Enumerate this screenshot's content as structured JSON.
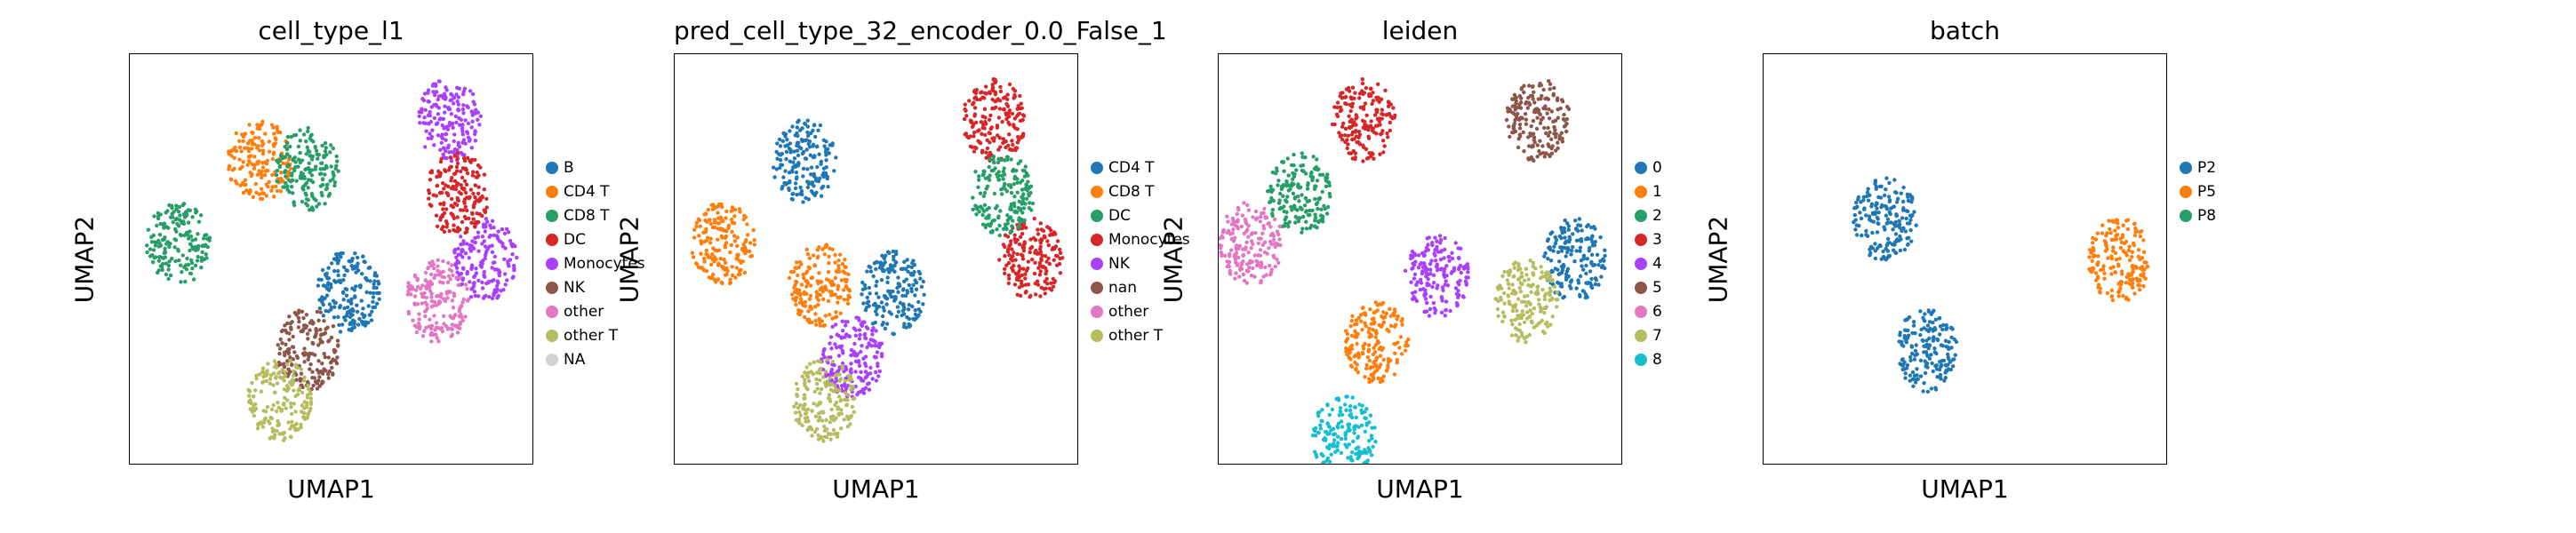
{
  "chart_data": [
    {
      "type": "scatter",
      "title": "cell_type_l1",
      "xlabel": "UMAP1",
      "ylabel": "UMAP2",
      "grid": false,
      "legend_position": "right",
      "legend": [
        {
          "label": "B",
          "color": "#1f77b4"
        },
        {
          "label": "CD4 T",
          "color": "#ff7f0e"
        },
        {
          "label": "CD8 T",
          "color": "#279e68"
        },
        {
          "label": "DC",
          "color": "#d62728"
        },
        {
          "label": "Monocytes",
          "color": "#aa40fc"
        },
        {
          "label": "NK",
          "color": "#8c564b"
        },
        {
          "label": "other",
          "color": "#e377c2"
        },
        {
          "label": "other T",
          "color": "#b5bd61"
        },
        {
          "label": "NA",
          "color": "#d3d3d3"
        }
      ],
      "clusters": [
        {
          "label": "CD4 T",
          "x": 3.2,
          "y": 7.4
        },
        {
          "label": "CD8 T",
          "x": 1.2,
          "y": 5.4
        },
        {
          "label": "CD8 T",
          "x": 4.4,
          "y": 7.2
        },
        {
          "label": "NK",
          "x": 4.4,
          "y": 2.8
        },
        {
          "label": "other T",
          "x": 3.7,
          "y": 1.6
        },
        {
          "label": "B",
          "x": 5.4,
          "y": 4.2
        },
        {
          "label": "Monocytes",
          "x": 8.8,
          "y": 5.0
        },
        {
          "label": "Monocytes",
          "x": 7.9,
          "y": 8.4
        },
        {
          "label": "DC",
          "x": 8.1,
          "y": 6.6
        },
        {
          "label": "other",
          "x": 7.6,
          "y": 4.0
        }
      ]
    },
    {
      "type": "scatter",
      "title": "pred_cell_type_32_encoder_0.0_False_1",
      "xlabel": "UMAP1",
      "ylabel": "UMAP2",
      "grid": false,
      "legend_position": "right",
      "legend": [
        {
          "label": "CD4 T",
          "color": "#1f77b4"
        },
        {
          "label": "CD8 T",
          "color": "#ff7f0e"
        },
        {
          "label": "DC",
          "color": "#279e68"
        },
        {
          "label": "Monocytes",
          "color": "#d62728"
        },
        {
          "label": "NK",
          "color": "#aa40fc"
        },
        {
          "label": "nan",
          "color": "#8c564b"
        },
        {
          "label": "other",
          "color": "#e377c2"
        },
        {
          "label": "other T",
          "color": "#b5bd61"
        }
      ],
      "clusters": [
        {
          "label": "CD4 T",
          "x": 3.2,
          "y": 7.4
        },
        {
          "label": "CD8 T",
          "x": 1.2,
          "y": 5.4
        },
        {
          "label": "CD8 T",
          "x": 3.6,
          "y": 4.4
        },
        {
          "label": "NK",
          "x": 4.4,
          "y": 2.6
        },
        {
          "label": "other T",
          "x": 3.7,
          "y": 1.6
        },
        {
          "label": "CD4 T",
          "x": 5.4,
          "y": 4.2
        },
        {
          "label": "Monocytes",
          "x": 8.8,
          "y": 5.0
        },
        {
          "label": "Monocytes",
          "x": 7.9,
          "y": 8.4
        },
        {
          "label": "DC",
          "x": 8.1,
          "y": 6.6
        }
      ]
    },
    {
      "type": "scatter",
      "title": "leiden",
      "xlabel": "UMAP1",
      "ylabel": "UMAP2",
      "grid": false,
      "legend_position": "right",
      "legend": [
        {
          "label": "0",
          "color": "#1f77b4"
        },
        {
          "label": "1",
          "color": "#ff7f0e"
        },
        {
          "label": "2",
          "color": "#279e68"
        },
        {
          "label": "3",
          "color": "#d62728"
        },
        {
          "label": "4",
          "color": "#aa40fc"
        },
        {
          "label": "5",
          "color": "#8c564b"
        },
        {
          "label": "6",
          "color": "#e377c2"
        },
        {
          "label": "7",
          "color": "#b5bd61"
        },
        {
          "label": "8",
          "color": "#17becf"
        }
      ],
      "clusters": [
        {
          "label": "0",
          "x": 8.8,
          "y": 5.0
        },
        {
          "label": "1",
          "x": 3.9,
          "y": 3.0
        },
        {
          "label": "2",
          "x": 2.0,
          "y": 6.6
        },
        {
          "label": "3",
          "x": 3.6,
          "y": 8.4
        },
        {
          "label": "4",
          "x": 5.4,
          "y": 4.6
        },
        {
          "label": "5",
          "x": 7.9,
          "y": 8.4
        },
        {
          "label": "6",
          "x": 0.8,
          "y": 5.4
        },
        {
          "label": "7",
          "x": 7.6,
          "y": 4.0
        },
        {
          "label": "8",
          "x": 3.1,
          "y": 0.7
        }
      ]
    },
    {
      "type": "scatter",
      "title": "batch",
      "xlabel": "UMAP1",
      "ylabel": "UMAP2",
      "grid": false,
      "legend_position": "right",
      "legend": [
        {
          "label": "P2",
          "color": "#1f77b4"
        },
        {
          "label": "P5",
          "color": "#ff7f0e"
        },
        {
          "label": "P8",
          "color": "#279e68"
        }
      ],
      "clusters": [
        {
          "label": "P2",
          "x": 3.0,
          "y": 6.0
        },
        {
          "label": "P5",
          "x": 8.8,
          "y": 5.0
        },
        {
          "label": "P2",
          "x": 4.0,
          "y": 2.8
        }
      ]
    }
  ]
}
